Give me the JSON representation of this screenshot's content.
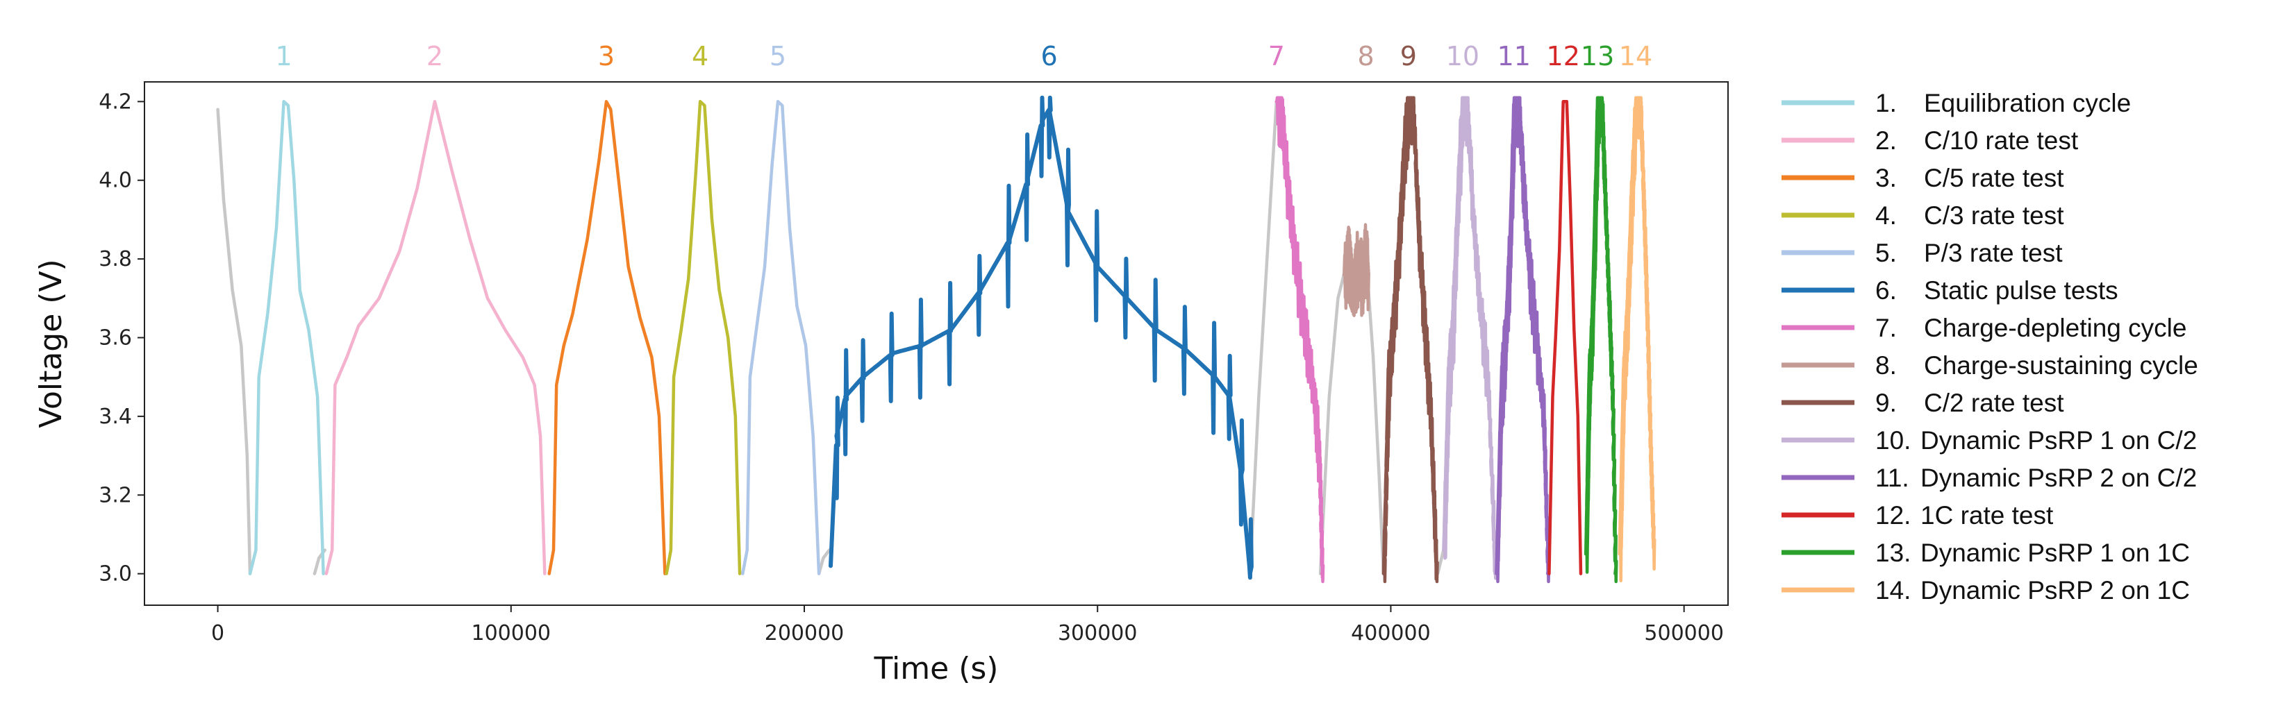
{
  "chart_data": {
    "type": "line",
    "xlabel": "Time (s)",
    "ylabel": "Voltage (V)",
    "xlim": [
      -25000,
      515000
    ],
    "ylim": [
      2.92,
      4.25
    ],
    "xticks": [
      0,
      100000,
      200000,
      300000,
      400000,
      500000
    ],
    "xtick_labels": [
      "0",
      "100000",
      "200000",
      "300000",
      "400000",
      "500000"
    ],
    "yticks": [
      3.0,
      3.2,
      3.4,
      3.6,
      3.8,
      4.0,
      4.2
    ],
    "ytick_labels": [
      "3.0",
      "3.2",
      "3.4",
      "3.6",
      "3.8",
      "4.0",
      "4.2"
    ],
    "grid": false,
    "legend_position": "right, outside plot",
    "rest_color": "#c7c7c7",
    "rest_segments": [
      {
        "x": [
          0,
          2000,
          5000,
          8000,
          10000,
          11000
        ],
        "y": [
          4.18,
          3.95,
          3.72,
          3.58,
          3.3,
          3.0
        ]
      },
      {
        "x": [
          33000,
          34500,
          36500
        ],
        "y": [
          3.0,
          3.04,
          3.06
        ]
      },
      {
        "x": [
          205000,
          206500,
          208500
        ],
        "y": [
          3.0,
          3.04,
          3.06
        ]
      },
      {
        "x": [
          352000,
          355000,
          357000,
          359000,
          361000
        ],
        "y": [
          3.0,
          3.45,
          3.7,
          3.95,
          4.2
        ]
      },
      {
        "x": [
          376000,
          379000,
          382000,
          384000
        ],
        "y": [
          3.0,
          3.45,
          3.7,
          3.76
        ]
      },
      {
        "x": [
          392000,
          394000,
          396000,
          397500
        ],
        "y": [
          3.76,
          3.55,
          3.25,
          3.0
        ]
      },
      {
        "x": [
          416000,
          418000
        ],
        "y": [
          3.0,
          3.06
        ]
      }
    ],
    "series": [
      {
        "name": "Equilibration cycle",
        "number": "1",
        "legend_num": "1.",
        "color": "#9fd8e2",
        "x": [
          11000,
          13000,
          14000,
          17000,
          20000,
          22500,
          24000,
          26000,
          28000,
          31000,
          34000,
          36000
        ],
        "y": [
          3.0,
          3.06,
          3.5,
          3.66,
          3.88,
          4.2,
          4.19,
          4.0,
          3.72,
          3.62,
          3.45,
          3.0
        ]
      },
      {
        "name": "C/10 rate test",
        "number": "2",
        "legend_num": "2.",
        "color": "#f4b2cf",
        "x": [
          37000,
          39000,
          40000,
          44000,
          48000,
          55000,
          62000,
          68000,
          74000,
          80000,
          86000,
          92000,
          98000,
          104000,
          108000,
          110000,
          111500
        ],
        "y": [
          3.0,
          3.06,
          3.48,
          3.55,
          3.63,
          3.7,
          3.82,
          3.98,
          4.2,
          4.02,
          3.85,
          3.7,
          3.62,
          3.55,
          3.48,
          3.35,
          3.0
        ]
      },
      {
        "name": "C/5 rate test",
        "number": "3",
        "legend_num": "3.",
        "color": "#f08023",
        "x": [
          113000,
          114500,
          115500,
          118000,
          121000,
          126000,
          130000,
          132500,
          134000,
          137000,
          140000,
          144000,
          148000,
          150500,
          152500
        ],
        "y": [
          3.0,
          3.06,
          3.48,
          3.58,
          3.66,
          3.85,
          4.05,
          4.2,
          4.18,
          3.98,
          3.78,
          3.65,
          3.55,
          3.4,
          3.0
        ]
      },
      {
        "name": "C/3 rate test",
        "number": "4",
        "legend_num": "4.",
        "color": "#bcbd30",
        "x": [
          153000,
          154500,
          155500,
          158000,
          160500,
          163000,
          164500,
          166000,
          168500,
          171000,
          174000,
          176500,
          178000
        ],
        "y": [
          3.0,
          3.06,
          3.5,
          3.62,
          3.75,
          4.02,
          4.2,
          4.19,
          3.9,
          3.72,
          3.6,
          3.4,
          3.0
        ]
      },
      {
        "name": "P/3 rate test",
        "number": "5",
        "legend_num": "5.",
        "color": "#aec6e8",
        "x": [
          179000,
          180500,
          181500,
          184000,
          186500,
          189000,
          191000,
          192500,
          195000,
          197500,
          200500,
          203000,
          205000
        ],
        "y": [
          3.0,
          3.06,
          3.5,
          3.64,
          3.78,
          4.04,
          4.2,
          4.19,
          3.88,
          3.68,
          3.58,
          3.35,
          3.0
        ]
      },
      {
        "name": "Static pulse tests",
        "number": "6",
        "legend_num": "6.",
        "color": "#1f72b4",
        "pulse": true,
        "x": [
          209000,
          211000,
          214000,
          220000,
          230000,
          240000,
          250000,
          260000,
          270000,
          276000,
          281000,
          283500,
          290000,
          300000,
          310000,
          320000,
          330000,
          340000,
          345000,
          349000,
          352000
        ],
        "y": [
          3.02,
          3.35,
          3.45,
          3.5,
          3.56,
          3.58,
          3.62,
          3.72,
          3.85,
          4.0,
          4.15,
          4.18,
          3.92,
          3.78,
          3.7,
          3.62,
          3.57,
          3.5,
          3.45,
          3.25,
          3.0
        ]
      },
      {
        "name": "Charge-depleting cycle",
        "number": "7",
        "legend_num": "7.",
        "color": "#e176c4",
        "noisy": true,
        "x": [
          361000,
          362500,
          364500,
          367000,
          370000,
          373000,
          375500,
          376500
        ],
        "y": [
          4.2,
          4.19,
          4.0,
          3.82,
          3.65,
          3.5,
          3.3,
          3.0
        ]
      },
      {
        "name": "Charge-sustaining cycle",
        "number": "8",
        "legend_num": "8.",
        "color": "#c49a94",
        "noisy": true,
        "x": [
          384000,
          385500,
          387000,
          388500,
          390000,
          391500,
          392000
        ],
        "y": [
          3.76,
          3.8,
          3.72,
          3.79,
          3.76,
          3.82,
          3.76
        ]
      },
      {
        "name": "C/2 rate test",
        "number": "9",
        "legend_num": "9.",
        "color": "#8b564b",
        "noisy": true,
        "x": [
          397500,
          399000,
          400500,
          402500,
          404500,
          406000,
          407500,
          409500,
          411500,
          413500,
          415500
        ],
        "y": [
          3.0,
          3.48,
          3.62,
          3.82,
          4.08,
          4.2,
          4.19,
          3.85,
          3.62,
          3.4,
          3.0
        ]
      },
      {
        "name": "Dynamic PsRP 1 on C/2",
        "number": "10",
        "legend_num": "10.",
        "color": "#c5b0d6",
        "noisy": true,
        "x": [
          418000,
          419500,
          421000,
          423000,
          424500,
          426000,
          428000,
          430500,
          433000,
          435500
        ],
        "y": [
          3.06,
          3.48,
          3.62,
          4.0,
          4.2,
          4.19,
          3.9,
          3.66,
          3.5,
          3.0
        ]
      },
      {
        "name": "Dynamic PsRP 2 on C/2",
        "number": "11",
        "legend_num": "11.",
        "color": "#9267bd",
        "noisy": true,
        "x": [
          436000,
          437500,
          439000,
          440500,
          442000,
          443500,
          445000,
          447000,
          449500,
          452000,
          453500
        ],
        "y": [
          3.0,
          3.45,
          3.6,
          3.82,
          4.2,
          4.19,
          4.0,
          3.78,
          3.6,
          3.4,
          3.0
        ]
      },
      {
        "name": "1C rate test",
        "number": "12",
        "legend_num": "12.",
        "color": "#d52728",
        "x": [
          454000,
          455200,
          456200,
          457500,
          458800,
          460000,
          461200,
          462500,
          463800,
          464800
        ],
        "y": [
          3.0,
          3.45,
          3.6,
          3.82,
          4.2,
          4.2,
          3.95,
          3.62,
          3.4,
          3.0
        ]
      },
      {
        "name": "Dynamic PsRP 1 on 1C",
        "number": "13",
        "legend_num": "13.",
        "color": "#2ba02c",
        "noisy": true,
        "x": [
          466500,
          467500,
          468500,
          469500,
          470500,
          471800,
          473000,
          474200,
          475500,
          476500
        ],
        "y": [
          3.05,
          3.48,
          3.62,
          3.9,
          4.2,
          4.2,
          3.95,
          3.7,
          3.45,
          3.0
        ]
      },
      {
        "name": "Dynamic PsRP 2 on 1C",
        "number": "14",
        "legend_num": "14.",
        "color": "#fcbb79",
        "noisy": true,
        "x": [
          478000,
          479200,
          480500,
          482000,
          483500,
          485000,
          486500,
          487500,
          488500,
          489500
        ],
        "y": [
          3.05,
          3.48,
          3.65,
          3.95,
          4.2,
          4.2,
          3.85,
          3.6,
          3.3,
          3.07
        ]
      }
    ]
  }
}
